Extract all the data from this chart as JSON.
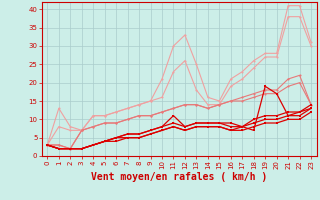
{
  "xlabel": "Vent moyen/en rafales ( km/h )",
  "background_color": "#cceee8",
  "grid_color": "#aacccc",
  "line_color_light1": "#f0a0a0",
  "line_color_light2": "#e87878",
  "line_color_dark": "#dd0000",
  "xlim": [
    -0.5,
    23.5
  ],
  "ylim": [
    0,
    42
  ],
  "yticks": [
    0,
    5,
    10,
    15,
    20,
    25,
    30,
    35,
    40
  ],
  "xticks": [
    0,
    1,
    2,
    3,
    4,
    5,
    6,
    7,
    8,
    9,
    10,
    11,
    12,
    13,
    14,
    15,
    16,
    17,
    18,
    19,
    20,
    21,
    22,
    23
  ],
  "series_light": [
    [
      3,
      13,
      8,
      7,
      11,
      11,
      12,
      13,
      14,
      15,
      21,
      30,
      33,
      25,
      16,
      15,
      21,
      23,
      26,
      28,
      28,
      41,
      41,
      31
    ],
    [
      3,
      8,
      7,
      7,
      11,
      11,
      12,
      13,
      14,
      15,
      16,
      23,
      26,
      18,
      14,
      14,
      19,
      21,
      24,
      27,
      27,
      38,
      38,
      30
    ]
  ],
  "series_mid": [
    [
      3,
      3,
      2,
      7,
      8,
      9,
      9,
      10,
      11,
      11,
      12,
      13,
      14,
      14,
      13,
      14,
      15,
      16,
      17,
      18,
      18,
      21,
      22,
      14
    ],
    [
      3,
      3,
      2,
      7,
      8,
      9,
      9,
      10,
      11,
      11,
      12,
      13,
      14,
      14,
      13,
      14,
      15,
      15,
      16,
      17,
      17,
      19,
      20,
      14
    ]
  ],
  "series_dark": [
    [
      3,
      2,
      2,
      2,
      3,
      4,
      5,
      6,
      6,
      7,
      8,
      11,
      8,
      9,
      9,
      9,
      9,
      8,
      7,
      19,
      17,
      11,
      12,
      14
    ],
    [
      3,
      2,
      2,
      2,
      3,
      4,
      5,
      6,
      6,
      7,
      8,
      9,
      8,
      9,
      9,
      9,
      8,
      8,
      10,
      11,
      11,
      12,
      12,
      13
    ],
    [
      3,
      2,
      2,
      2,
      3,
      4,
      5,
      5,
      5,
      6,
      7,
      8,
      7,
      8,
      8,
      8,
      7,
      8,
      9,
      10,
      10,
      11,
      11,
      13
    ],
    [
      3,
      2,
      2,
      2,
      3,
      4,
      4,
      5,
      5,
      6,
      7,
      8,
      7,
      8,
      8,
      8,
      7,
      7,
      8,
      9,
      9,
      10,
      10,
      12
    ]
  ],
  "xlabel_fontsize": 7,
  "tick_fontsize": 5,
  "tick_color": "#cc0000",
  "spine_color": "#cc0000"
}
